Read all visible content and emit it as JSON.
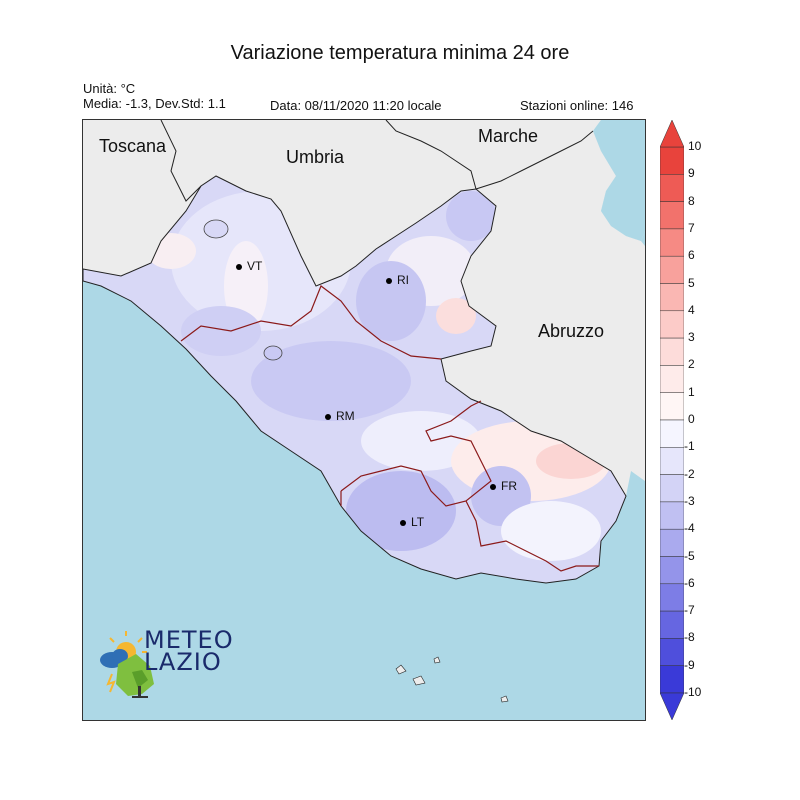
{
  "title": "Variazione temperatura minima 24 ore",
  "units": "Unità: °C",
  "stats": "Media: -1.3, Dev.Std: 1.1",
  "date": "Data: 08/11/2020 11:20 locale",
  "stations": "Stazioni online: 146",
  "regions": {
    "toscana": "Toscana",
    "umbria": "Umbria",
    "marche": "Marche",
    "abruzzo": "Abruzzo"
  },
  "cities": {
    "vt": "VT",
    "ri": "RI",
    "rm": "RM",
    "fr": "FR",
    "lt": "LT"
  },
  "colorbar": {
    "ticks": [
      "10",
      "9",
      "8",
      "7",
      "6",
      "5",
      "4",
      "3",
      "2",
      "1",
      "0",
      "-1",
      "-2",
      "-3",
      "-4",
      "-5",
      "-6",
      "-7",
      "-8",
      "-9",
      "-10"
    ],
    "colors_top_to_bottom": [
      "#e8433c",
      "#ee5b55",
      "#f2726c",
      "#f68a84",
      "#f8a19c",
      "#fab7b3",
      "#fccbc8",
      "#fddcda",
      "#feebea",
      "#fff6f5",
      "#f5f5ff",
      "#e6e6fb",
      "#d3d3f6",
      "#c0c0f2",
      "#aaaaee",
      "#9494ea",
      "#7d7de6",
      "#6666e1",
      "#4f4fdc",
      "#3a3ad8"
    ]
  },
  "logo": {
    "line1": "METEO",
    "line2": "LAZIO"
  }
}
